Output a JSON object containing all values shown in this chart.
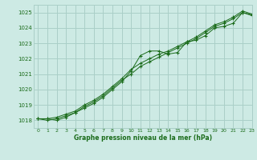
{
  "title": "Graphe pression niveau de la mer (hPa)",
  "bg_color": "#cdeae4",
  "grid_color": "#aacfc8",
  "line_color": "#1a6b1a",
  "xlim": [
    -0.5,
    23
  ],
  "ylim": [
    1017.5,
    1025.5
  ],
  "yticks": [
    1018,
    1019,
    1020,
    1021,
    1022,
    1023,
    1024,
    1025
  ],
  "xticks": [
    0,
    1,
    2,
    3,
    4,
    5,
    6,
    7,
    8,
    9,
    10,
    11,
    12,
    13,
    14,
    15,
    16,
    17,
    18,
    19,
    20,
    21,
    22,
    23
  ],
  "series": [
    [
      1018.1,
      1018.1,
      1018.0,
      1018.2,
      1018.5,
      1018.8,
      1019.1,
      1019.5,
      1020.0,
      1020.5,
      1021.2,
      1022.2,
      1022.5,
      1022.5,
      1022.3,
      1022.4,
      1023.1,
      1023.2,
      1023.5,
      1024.0,
      1024.1,
      1024.3,
      1025.0,
      1024.8
    ],
    [
      1018.1,
      1018.1,
      1018.2,
      1018.4,
      1018.6,
      1019.0,
      1019.3,
      1019.7,
      1020.2,
      1020.7,
      1021.3,
      1021.7,
      1022.0,
      1022.3,
      1022.5,
      1022.8,
      1023.1,
      1023.4,
      1023.8,
      1024.2,
      1024.4,
      1024.7,
      1025.1,
      1024.9
    ],
    [
      1018.1,
      1018.0,
      1018.1,
      1018.3,
      1018.5,
      1018.9,
      1019.2,
      1019.6,
      1020.1,
      1020.6,
      1021.0,
      1021.5,
      1021.8,
      1022.1,
      1022.4,
      1022.7,
      1023.0,
      1023.3,
      1023.7,
      1024.1,
      1024.3,
      1024.6,
      1025.0,
      1024.85
    ]
  ]
}
